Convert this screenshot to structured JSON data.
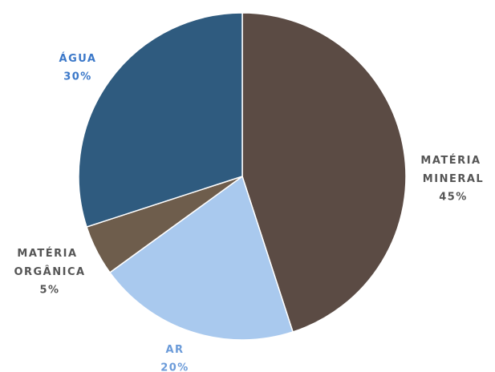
{
  "chart_data": {
    "type": "pie",
    "categories": [
      "MATÉRIA MINERAL",
      "AR",
      "MATÉRIA ORGÂNICA",
      "ÁGUA"
    ],
    "values": [
      45,
      20,
      5,
      30
    ],
    "value_labels": [
      "45%",
      "20%",
      "5%",
      "30%"
    ],
    "colors": [
      "#5b4b44",
      "#a9c9ee",
      "#6e5d4c",
      "#2f5b7f"
    ],
    "label_colors": [
      "#555555",
      "#6b9bd9",
      "#555555",
      "#3b78c9"
    ]
  }
}
